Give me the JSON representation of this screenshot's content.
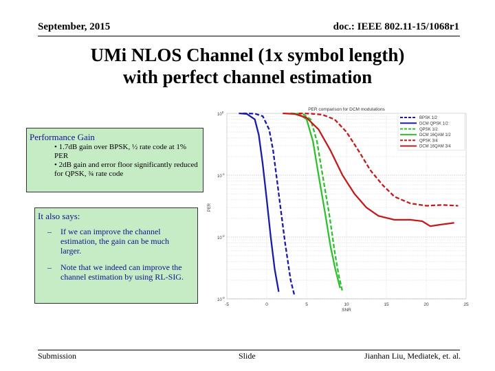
{
  "header": {
    "date": "September, 2015",
    "doc": "doc.: IEEE 802.11-15/1068r1"
  },
  "title": {
    "line1": "UMi NLOS Channel (1x symbol length)",
    "line2": "with perfect channel estimation"
  },
  "gain_box": {
    "title": "Performance Gain",
    "items": [
      "• 1.7dB gain over BPSK, ½ rate code at 1% PER",
      "• 2dB gain and error floor significantly reduced for QPSK, ¾ rate code"
    ]
  },
  "also_box": {
    "title": "It also says:",
    "dash": "–",
    "items": [
      "If we can improve the channel estimation, the gain can be much larger.",
      "Note that we indeed can improve the channel estimation by using RL-SIG."
    ]
  },
  "footer": {
    "left": "Submission",
    "center": "Slide",
    "right": "Jianhan Liu,  Mediatek, et. al."
  },
  "chart_data": {
    "type": "line",
    "title": "PER comparison for DCM modulations",
    "xlabel": "SNR",
    "ylabel": "PER",
    "xlim": [
      -5,
      25
    ],
    "ylim": [
      0.001,
      1
    ],
    "yscale": "log",
    "x_ticks": [
      -5,
      0,
      5,
      10,
      15,
      20,
      25
    ],
    "y_ticks": [
      {
        "value": 1,
        "base": "10",
        "exp": "0"
      },
      {
        "value": 0.1,
        "base": "10",
        "exp": "-1"
      },
      {
        "value": 0.01,
        "base": "10",
        "exp": "-2"
      },
      {
        "value": 0.001,
        "base": "10",
        "exp": "-3"
      }
    ],
    "grid": true,
    "legend_position": "top-right",
    "series": [
      {
        "name": "BPSK 1/2",
        "color": "#1a1aa8",
        "dash": true,
        "x": [
          -3.0,
          -1.5,
          -0.5,
          0.3,
          0.8,
          1.3,
          1.8,
          2.3,
          3.0,
          3.5
        ],
        "y": [
          1.0,
          0.99,
          0.9,
          0.55,
          0.25,
          0.08,
          0.025,
          0.008,
          0.002,
          0.0011
        ]
      },
      {
        "name": "DCM QPSK 1/2",
        "color": "#1a1aa8",
        "dash": false,
        "x": [
          -3.5,
          -2.5,
          -1.5,
          -1.0,
          -0.5,
          0.0,
          0.5,
          1.0,
          1.5
        ],
        "y": [
          1.0,
          0.98,
          0.8,
          0.45,
          0.15,
          0.04,
          0.01,
          0.003,
          0.0013
        ]
      },
      {
        "name": "QPSK 1/2",
        "color": "#2ec02e",
        "dash": true,
        "x": [
          3.0,
          4.5,
          5.5,
          6.3,
          7.0,
          7.8,
          8.5,
          9.0,
          9.5
        ],
        "y": [
          1.0,
          0.98,
          0.8,
          0.35,
          0.1,
          0.025,
          0.006,
          0.0025,
          0.0013
        ]
      },
      {
        "name": "DCM 16QAM 1/2",
        "color": "#2ec02e",
        "dash": false,
        "x": [
          3.0,
          4.0,
          5.0,
          5.8,
          6.5,
          7.3,
          8.0,
          8.6,
          9.2
        ],
        "y": [
          1.0,
          0.98,
          0.8,
          0.35,
          0.1,
          0.025,
          0.007,
          0.003,
          0.0015
        ]
      },
      {
        "name": "QPSK 3/4",
        "color": "#c41a1a",
        "dash": true,
        "x": [
          4.0,
          5.5,
          7.0,
          8.5,
          10.0,
          11.5,
          13.0,
          14.5,
          16.0,
          18.0,
          20.0,
          22.0,
          24.0
        ],
        "y": [
          1.0,
          0.99,
          0.95,
          0.8,
          0.5,
          0.25,
          0.12,
          0.07,
          0.045,
          0.035,
          0.032,
          0.033,
          0.032
        ]
      },
      {
        "name": "DCM 16QAM 3/4",
        "color": "#c41a1a",
        "dash": false,
        "x": [
          2.0,
          3.5,
          5.0,
          6.5,
          8.0,
          9.5,
          11.0,
          12.5,
          14.0,
          16.0,
          18.0,
          19.5,
          20.5,
          22.0,
          23.5
        ],
        "y": [
          1.0,
          0.98,
          0.85,
          0.55,
          0.25,
          0.1,
          0.05,
          0.03,
          0.022,
          0.019,
          0.019,
          0.018,
          0.015,
          0.016,
          0.017
        ]
      }
    ]
  }
}
